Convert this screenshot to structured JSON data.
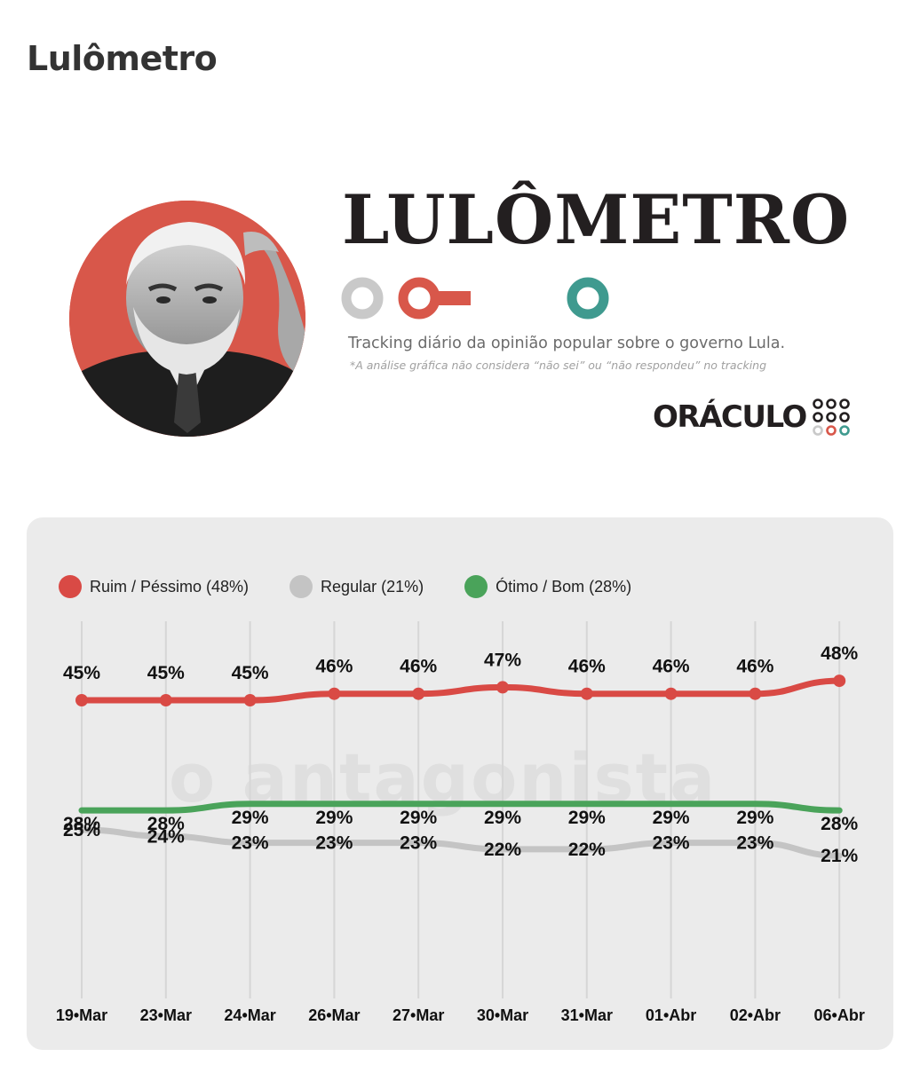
{
  "header": {
    "title": "Lulômetro"
  },
  "infographic": {
    "brand": "LULÔMETRO",
    "tagline": "Tracking diário da opinião popular sobre o governo Lula.",
    "footnote": "*A análise gráfica não considera  “não sei” ou “não respondeu” no tracking",
    "publisher": "ORÁCULO",
    "watermark": "o antagonista",
    "colors": {
      "red": "#d8574a",
      "gray": "#c9c9c9",
      "teal": "#3f9a8f",
      "dark": "#231f20"
    }
  },
  "chart_data": {
    "type": "line",
    "categories": [
      "19•Mar",
      "23•Mar",
      "24•Mar",
      "26•Mar",
      "27•Mar",
      "30•Mar",
      "31•Mar",
      "01•Abr",
      "02•Abr",
      "06•Abr"
    ],
    "series": [
      {
        "name": "Ruim / Péssimo (48%)",
        "color": "#d94a45",
        "values": [
          45,
          45,
          45,
          46,
          46,
          47,
          46,
          46,
          46,
          48
        ]
      },
      {
        "name": "Regular (21%)",
        "color": "#c4c4c4",
        "values": [
          25,
          24,
          23,
          23,
          23,
          22,
          22,
          23,
          23,
          21
        ]
      },
      {
        "name": "Ótimo / Bom (28%)",
        "color": "#4aa35a",
        "values": [
          28,
          28,
          29,
          29,
          29,
          29,
          29,
          29,
          29,
          28
        ]
      }
    ],
    "value_suffix": "%",
    "grid": "vertical",
    "legend": "top-left"
  }
}
